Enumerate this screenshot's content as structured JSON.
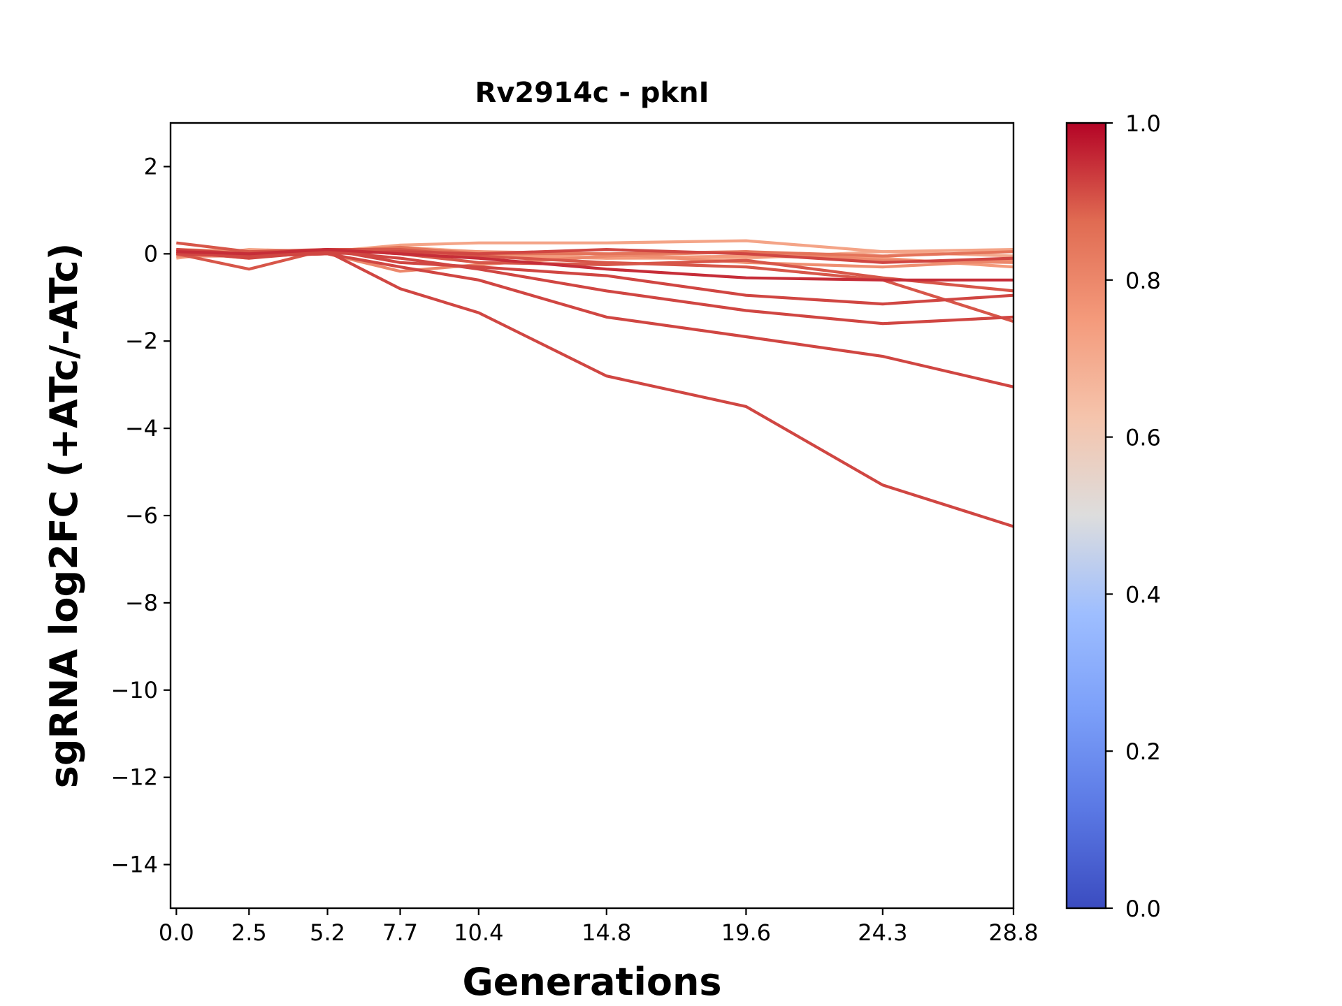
{
  "chart_data": {
    "type": "line",
    "title": "Rv2914c - pknI",
    "xlabel": "Generations",
    "ylabel": "sgRNA log2FC (+ATc/-ATc)",
    "x": [
      0.0,
      2.5,
      5.2,
      7.7,
      10.4,
      14.8,
      19.6,
      24.3,
      28.8
    ],
    "x_tick_labels": [
      "0.0",
      "2.5",
      "5.2",
      "7.7",
      "10.4",
      "14.8",
      "19.6",
      "24.3",
      "28.8"
    ],
    "xlim": [
      -0.2,
      28.8
    ],
    "ylim": [
      -15,
      3
    ],
    "y_ticks": [
      2,
      0,
      -2,
      -4,
      -6,
      -8,
      -10,
      -12,
      -14
    ],
    "y_tick_labels": [
      "2",
      "0",
      "−2",
      "−4",
      "−6",
      "−8",
      "−10",
      "−12",
      "−14"
    ],
    "grid": false,
    "colorbar": {
      "colormap": "coolwarm",
      "range": [
        0.0,
        1.0
      ],
      "ticks": [
        0.0,
        0.2,
        0.4,
        0.6,
        0.8,
        1.0
      ],
      "tick_labels": [
        "0.0",
        "0.2",
        "0.4",
        "0.6",
        "0.8",
        "1.0"
      ]
    },
    "series": [
      {
        "color_value": 0.92,
        "values": [
          0.0,
          -0.05,
          0.05,
          -0.8,
          -1.35,
          -2.8,
          -3.5,
          -5.3,
          -6.25
        ]
      },
      {
        "color_value": 0.92,
        "values": [
          0.0,
          -0.05,
          0.0,
          -0.3,
          -0.6,
          -1.45,
          -1.9,
          -2.35,
          -3.05
        ]
      },
      {
        "color_value": 0.92,
        "values": [
          0.05,
          -0.1,
          0.05,
          -0.1,
          -0.35,
          -0.85,
          -1.3,
          -1.6,
          -1.45
        ]
      },
      {
        "color_value": 0.92,
        "values": [
          0.1,
          0.0,
          0.1,
          -0.2,
          -0.3,
          -0.5,
          -0.95,
          -1.15,
          -0.95
        ]
      },
      {
        "color_value": 0.95,
        "values": [
          0.05,
          0.0,
          0.1,
          0.0,
          -0.1,
          -0.35,
          -0.55,
          -0.6,
          -0.6
        ]
      },
      {
        "color_value": 0.9,
        "values": [
          0.25,
          0.05,
          0.1,
          0.0,
          -0.2,
          -0.25,
          -0.15,
          -0.55,
          -0.85
        ]
      },
      {
        "color_value": 0.9,
        "values": [
          0.0,
          -0.35,
          0.1,
          0.1,
          -0.05,
          -0.2,
          -0.3,
          -0.6,
          -1.55
        ]
      },
      {
        "color_value": 0.92,
        "values": [
          0.1,
          -0.05,
          0.0,
          0.05,
          0.0,
          0.1,
          0.0,
          -0.2,
          -0.1
        ]
      },
      {
        "color_value": 0.85,
        "values": [
          0.0,
          0.0,
          0.05,
          0.15,
          0.0,
          0.0,
          0.05,
          -0.05,
          0.05
        ]
      },
      {
        "color_value": 0.8,
        "values": [
          -0.05,
          -0.05,
          0.0,
          -0.4,
          -0.25,
          -0.05,
          0.05,
          -0.15,
          -0.2
        ]
      },
      {
        "color_value": 0.78,
        "values": [
          0.1,
          0.05,
          0.0,
          0.1,
          0.05,
          0.0,
          -0.2,
          -0.3,
          -0.15
        ]
      },
      {
        "color_value": 0.75,
        "values": [
          0.05,
          -0.1,
          0.1,
          0.05,
          -0.05,
          -0.1,
          -0.05,
          -0.1,
          -0.3
        ]
      },
      {
        "color_value": 0.72,
        "values": [
          -0.1,
          0.1,
          0.05,
          0.2,
          0.25,
          0.25,
          0.3,
          0.05,
          0.1
        ]
      },
      {
        "color_value": 0.7,
        "values": [
          0.0,
          0.0,
          0.0,
          0.15,
          0.05,
          -0.1,
          -0.1,
          0.05,
          -0.05
        ]
      }
    ]
  }
}
